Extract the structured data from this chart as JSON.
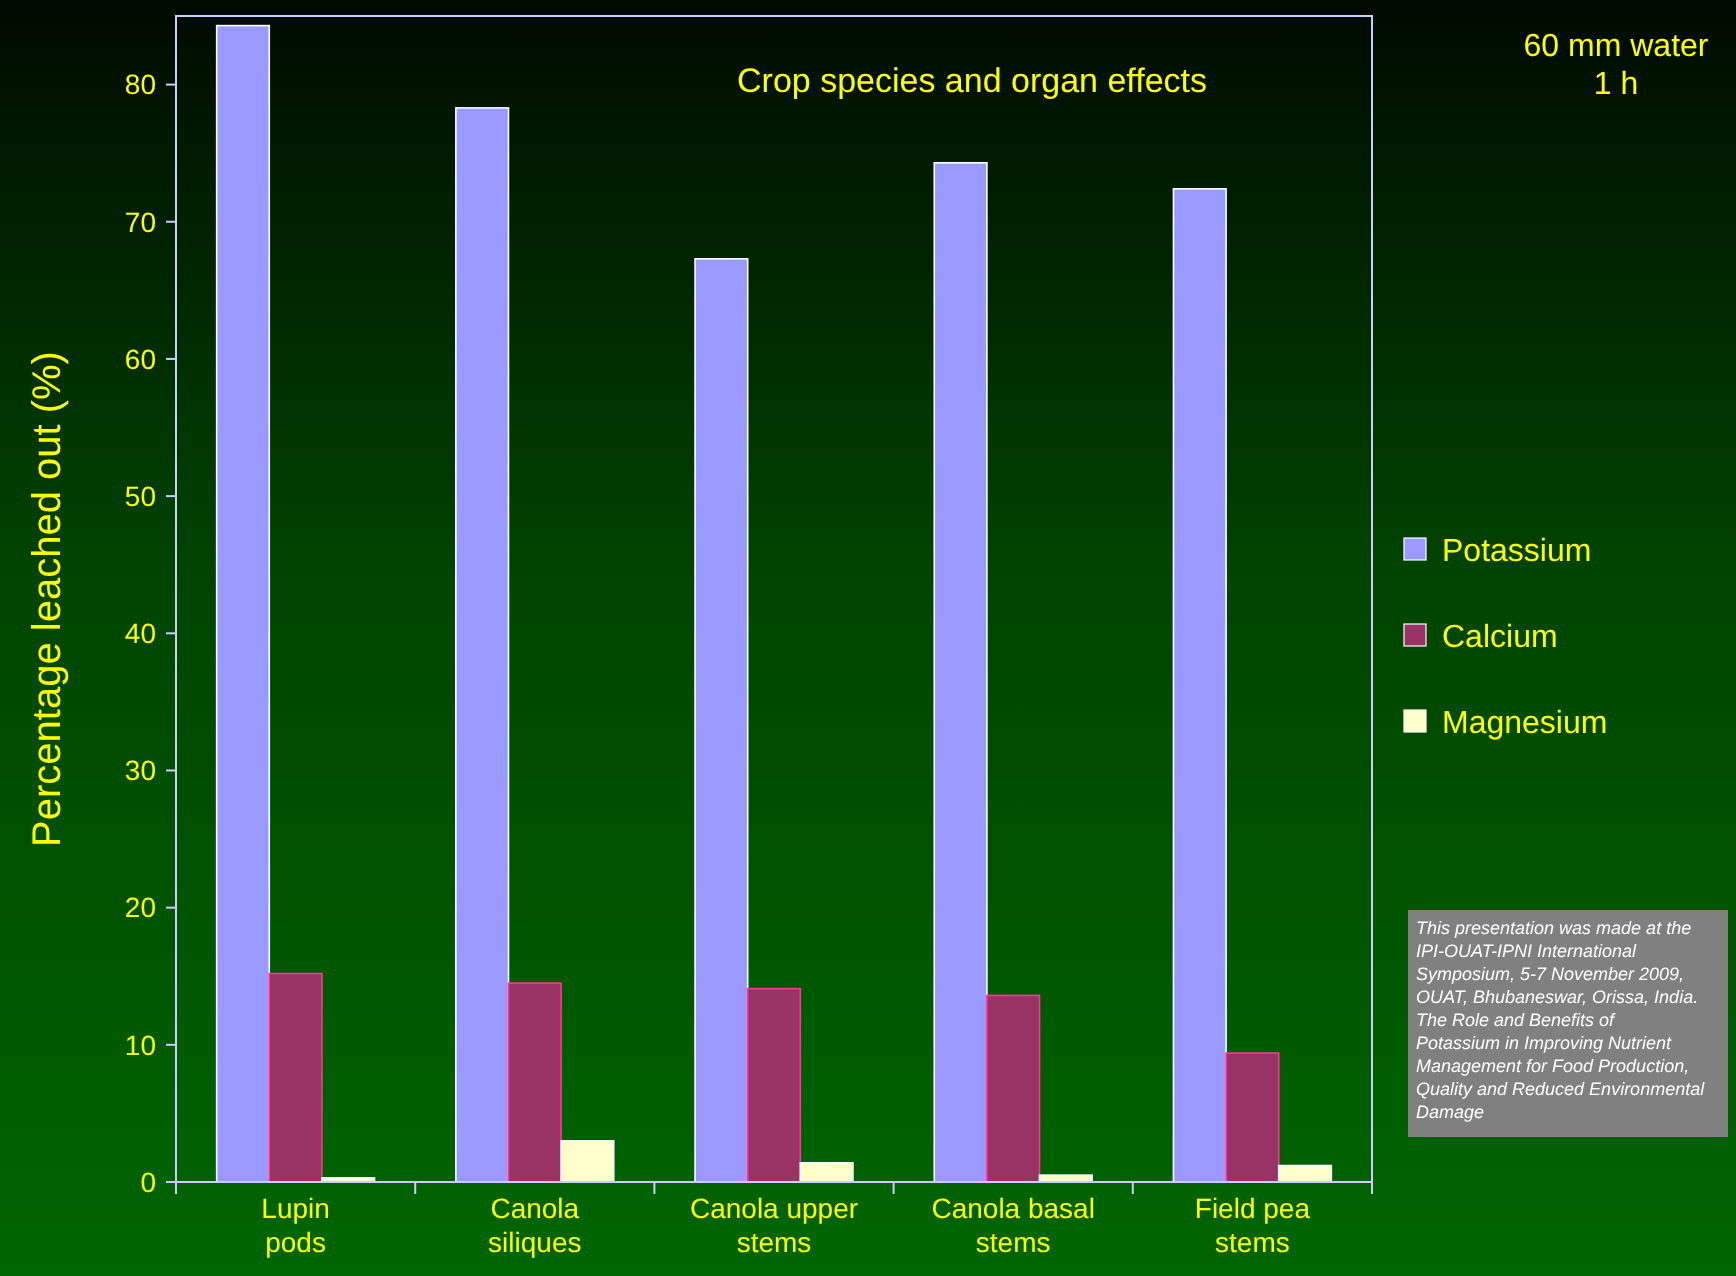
{
  "chart_data": {
    "type": "bar",
    "title": "Crop species and organ effects",
    "ylabel": "Percentage leached out (%)",
    "categories": [
      "Lupin pods",
      "Canola siliques",
      "Canola upper stems",
      "Canola basal stems",
      "Field pea stems"
    ],
    "series": [
      {
        "name": "Potassium",
        "color": "#9999ff",
        "values": [
          84.3,
          78.3,
          67.3,
          74.3,
          72.4
        ]
      },
      {
        "name": "Calcium",
        "color": "#993366",
        "values": [
          15.2,
          14.5,
          14.1,
          13.6,
          9.4
        ]
      },
      {
        "name": "Magnesium",
        "color": "#ffffcc",
        "values": [
          0.3,
          3.0,
          1.4,
          0.5,
          1.2
        ]
      }
    ],
    "ylim": [
      0,
      85
    ],
    "yticks": [
      0,
      10,
      20,
      30,
      40,
      50,
      60,
      70,
      80
    ],
    "grid": false,
    "legend": "right",
    "annotations": [
      "60 mm water 1 h",
      "This presentation was made at the IPI-OUAT-IPNI International Symposium, 5-7 November 2009, OUAT, Bhubaneswar, Orissa, India. The Role and Benefits of Potassium in Improving Nutrient Management for Food Production, Quality and Reduced Environmental Damage"
    ]
  }
}
